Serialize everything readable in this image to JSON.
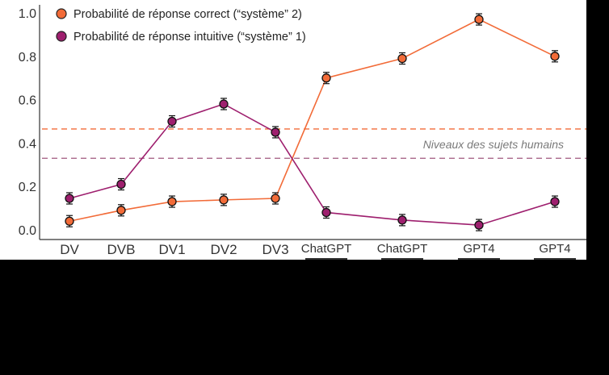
{
  "chart_data": {
    "type": "line",
    "title": "",
    "xlabel": "",
    "ylabel": "",
    "ylim": [
      0,
      1.0
    ],
    "y_ticks": [
      "0.0",
      "0.2",
      "0.4",
      "0.6",
      "0.8",
      "1.0"
    ],
    "categories": [
      "DV",
      "DVB",
      "DV1",
      "DV2",
      "DV3",
      "ChatGPT",
      "ChatGPT",
      "GPT4",
      "GPT4"
    ],
    "series": [
      {
        "name": "Probabilité de réponse correct (“système” 2)",
        "color": "#F26B38",
        "values": [
          0.04,
          0.09,
          0.13,
          0.138,
          0.145,
          0.7,
          0.79,
          0.97,
          0.8
        ]
      },
      {
        "name": "Probabilité de réponse intuitive (“système” 1)",
        "color": "#9E1F6E",
        "values": [
          0.145,
          0.21,
          0.5,
          0.58,
          0.45,
          0.08,
          0.045,
          0.022,
          0.13
        ]
      }
    ],
    "reference_lines": [
      {
        "series": "correct",
        "value": 0.465,
        "color": "#F26B38",
        "style": "dashed"
      },
      {
        "series": "intuitive",
        "value": 0.33,
        "color": "#A0577F",
        "style": "dashed"
      }
    ],
    "annotation": "Niveaux des sujets humains",
    "legend_position": "top-left",
    "grid": false
  }
}
